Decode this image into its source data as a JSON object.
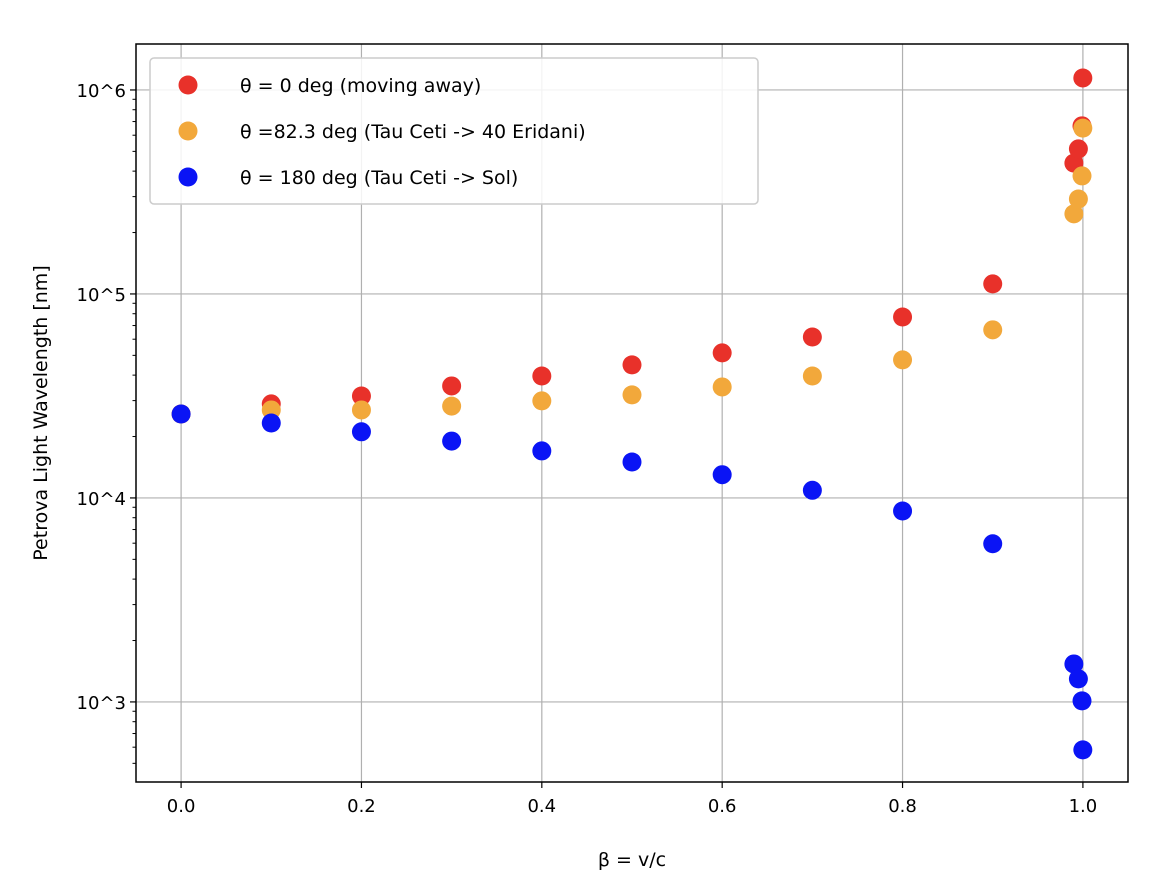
{
  "chart_data": {
    "type": "scatter",
    "title": "",
    "xlabel": "β = v/c",
    "ylabel": "Petrova Light Wavelength [nm]",
    "xlim": [
      -0.05,
      1.05
    ],
    "ylim": [
      405,
      1680000
    ],
    "yscale": "log",
    "grid": true,
    "legend_position": "top-left",
    "x_ticks": [
      "0.0",
      "0.2",
      "0.4",
      "0.6",
      "0.8",
      "1.0"
    ],
    "x_tick_values": [
      0,
      0.2,
      0.4,
      0.6,
      0.8,
      1.0
    ],
    "y_ticks": [
      "10^3",
      "10^4",
      "10^5",
      "10^6"
    ],
    "y_tick_values": [
      1000,
      10000,
      100000,
      1000000
    ],
    "series": [
      {
        "name": "θ = 0 deg (moving away)",
        "color": "#e8312a",
        "x": [
          0,
          0.1,
          0.2,
          0.3,
          0.4,
          0.5,
          0.6,
          0.7,
          0.8,
          0.9,
          0.99,
          0.995,
          0.999,
          0.9999
        ],
        "y": [
          25800,
          28900,
          31600,
          35400,
          39600,
          44900,
          51400,
          61500,
          77100,
          112000,
          438000,
          514000,
          667000,
          1145000
        ]
      },
      {
        "name": "θ =82.3 deg (Tau Ceti -> 40 Eridani)",
        "color": "#f2a83b",
        "x": [
          0,
          0.1,
          0.2,
          0.3,
          0.4,
          0.5,
          0.6,
          0.7,
          0.8,
          0.9,
          0.99,
          0.995,
          0.999,
          0.9999
        ],
        "y": [
          25800,
          27000,
          27000,
          28200,
          29900,
          32000,
          35000,
          39600,
          47500,
          66700,
          247000,
          292000,
          379000,
          650000
        ]
      },
      {
        "name": "θ = 180 deg (Tau Ceti -> Sol)",
        "color": "#0a14f5",
        "x": [
          0,
          0.1,
          0.2,
          0.3,
          0.4,
          0.5,
          0.6,
          0.7,
          0.8,
          0.9,
          0.99,
          0.995,
          0.999,
          0.9999
        ],
        "y": [
          25800,
          23300,
          21100,
          19000,
          17000,
          15000,
          13000,
          10900,
          8630,
          5960,
          1535,
          1297,
          1012,
          582
        ]
      }
    ]
  }
}
